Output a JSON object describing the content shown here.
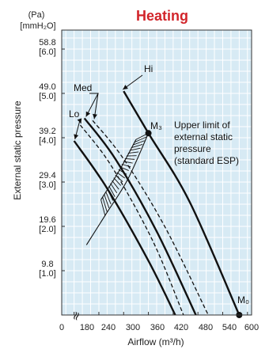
{
  "chart_data": {
    "type": "line",
    "title": "Heating",
    "xlabel": "Airflow (m³/h)",
    "ylabel": "External static pressure",
    "y_unit_top": "(Pa)",
    "y_unit_bottom": "[mmH₂O]",
    "x_ticks": [
      "0",
      "180",
      "240",
      "300",
      "360",
      "420",
      "480",
      "540",
      "600"
    ],
    "y_ticks": [
      {
        "pa": "9.8",
        "mm": "[1.0]"
      },
      {
        "pa": "19.6",
        "mm": "[2.0]"
      },
      {
        "pa": "29.4",
        "mm": "[3.0]"
      },
      {
        "pa": "39.2",
        "mm": "[4.0]"
      },
      {
        "pa": "49.0",
        "mm": "[5.0]"
      },
      {
        "pa": "58.8",
        "mm": "[6.0]"
      }
    ],
    "xlim": [
      150,
      610
    ],
    "ylim": [
      0,
      63
    ],
    "grid": true,
    "series": [
      {
        "name": "Hi",
        "style": "solid",
        "x": [
          300,
          360,
          460,
          580
        ],
        "y": [
          49.5,
          40.2,
          25.0,
          0
        ]
      },
      {
        "name": "Med",
        "style": "dashed",
        "x": [
          225,
          300,
          400,
          505
        ],
        "y": [
          43.0,
          34.5,
          19.5,
          0
        ]
      },
      {
        "name": "Med",
        "style": "solid",
        "x": [
          205,
          280,
          380,
          475
        ],
        "y": [
          43.5,
          34.5,
          18.5,
          0
        ]
      },
      {
        "name": "Lo",
        "style": "dashed",
        "x": [
          195,
          270,
          370,
          445
        ],
        "y": [
          42.0,
          33.0,
          16.5,
          0
        ]
      },
      {
        "name": "Lo",
        "style": "solid",
        "x": [
          180,
          260,
          360,
          425
        ],
        "y": [
          38.5,
          28.0,
          12.0,
          0
        ]
      }
    ],
    "esp_limit_curve": {
      "x": [
        210,
        255,
        310,
        360
      ],
      "y": [
        15.5,
        22.0,
        30.0,
        40.2
      ]
    },
    "esp_hatch_lower": {
      "x": [
        245,
        290,
        330
      ],
      "y": [
        25.5,
        32.0,
        38.8
      ]
    },
    "points": [
      {
        "label": "M₃",
        "x": 360,
        "y": 40.2
      },
      {
        "label": "M₀",
        "x": 580,
        "y": 0
      }
    ],
    "annotations": {
      "hi": "Hi",
      "med": "Med",
      "lo": "Lo",
      "upper_limit": [
        "Upper limit of",
        "external static",
        "pressure",
        "(standard ESP)"
      ],
      "break_mark": "≈"
    }
  }
}
